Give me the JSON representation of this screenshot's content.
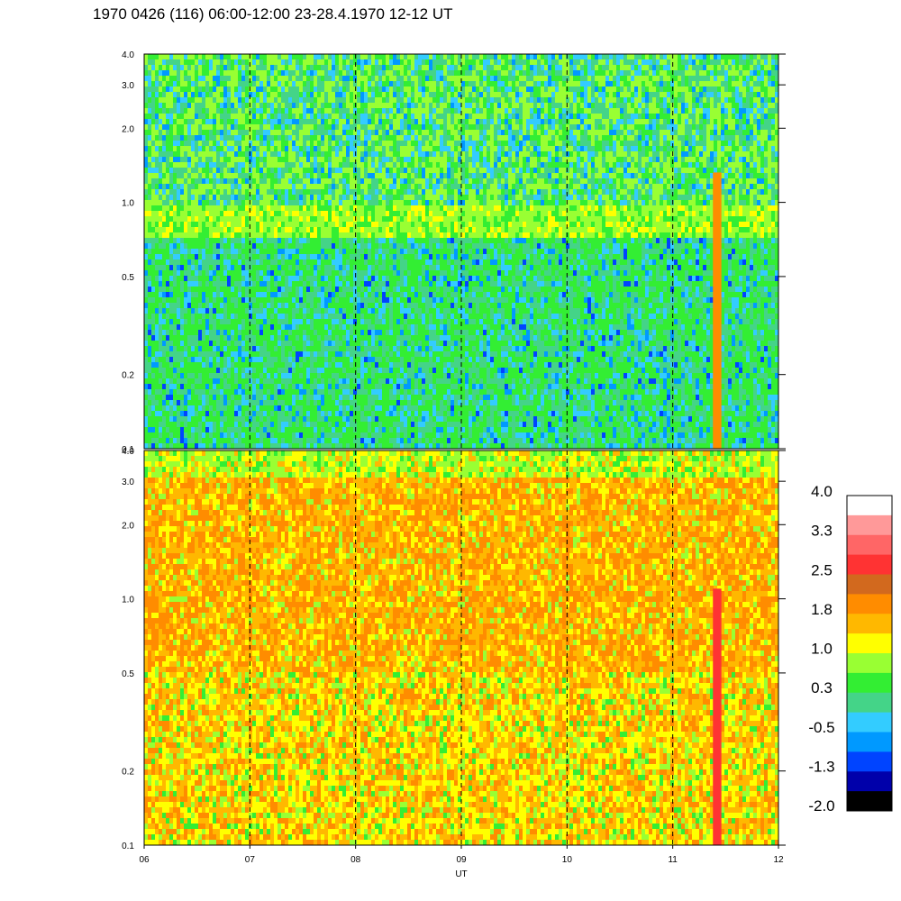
{
  "title": "1970 0426 (116) 06:00-12:00 23-28.4.1970  12-12 UT",
  "chart_data": {
    "type": "heatmap",
    "title": "1970 0426 (116) 06:00-12:00 23-28.4.1970  12-12 UT",
    "xlabel": "UT",
    "x_ticks": [
      "06",
      "07",
      "08",
      "09",
      "10",
      "11",
      "12"
    ],
    "xlim": [
      6,
      12
    ],
    "panels": [
      {
        "name": "upper",
        "ylabel": "",
        "yscale": "log",
        "ylim": [
          0.1,
          4.0
        ],
        "y_ticks": [
          {
            "value": 0.1,
            "label": "0.1"
          },
          {
            "value": 0.2,
            "label": "0.2"
          },
          {
            "value": 0.5,
            "label": "0.5"
          },
          {
            "value": 1.0,
            "label": "1.0"
          },
          {
            "value": 2.0,
            "label": "2.0"
          },
          {
            "value": 3.0,
            "label": "3.0"
          },
          {
            "value": 4.0,
            "label": "4.0"
          }
        ],
        "dominant_levels": "approx -0.5 to 1.0 (green/cyan), brighter band near 0.7-0.8"
      },
      {
        "name": "lower",
        "ylabel": "",
        "yscale": "log",
        "ylim": [
          0.1,
          4.0
        ],
        "y_ticks": [
          {
            "value": 0.1,
            "label": "0.1"
          },
          {
            "value": 0.2,
            "label": "0.2"
          },
          {
            "value": 0.5,
            "label": "0.5"
          },
          {
            "value": 1.0,
            "label": "1.0"
          },
          {
            "value": 2.0,
            "label": "2.0"
          },
          {
            "value": 3.0,
            "label": "3.0"
          },
          {
            "value": 4.0,
            "label": "4.0"
          }
        ],
        "dominant_levels": "approx 1.0 to 2.0 (yellow/orange)"
      }
    ],
    "dashed_gridlines_x": [
      7,
      8,
      9,
      10,
      11
    ],
    "notable_events": [
      {
        "x_start": 11.38,
        "x_end": 11.46,
        "description": "intense vertical burst"
      }
    ],
    "colorbar": {
      "labels": [
        "4.0",
        "3.3",
        "2.5",
        "1.8",
        "1.0",
        "0.3",
        "-0.5",
        "-1.3",
        "-2.0"
      ],
      "colors_top_to_bottom": [
        "#ffffff",
        "#ff9999",
        "#ff6666",
        "#ff3333",
        "#d2691e",
        "#ff8c00",
        "#ffb800",
        "#ffff00",
        "#99ff33",
        "#33ee33",
        "#44d488",
        "#33ccff",
        "#0099ff",
        "#0044ff",
        "#0000aa",
        "#000000"
      ]
    }
  }
}
